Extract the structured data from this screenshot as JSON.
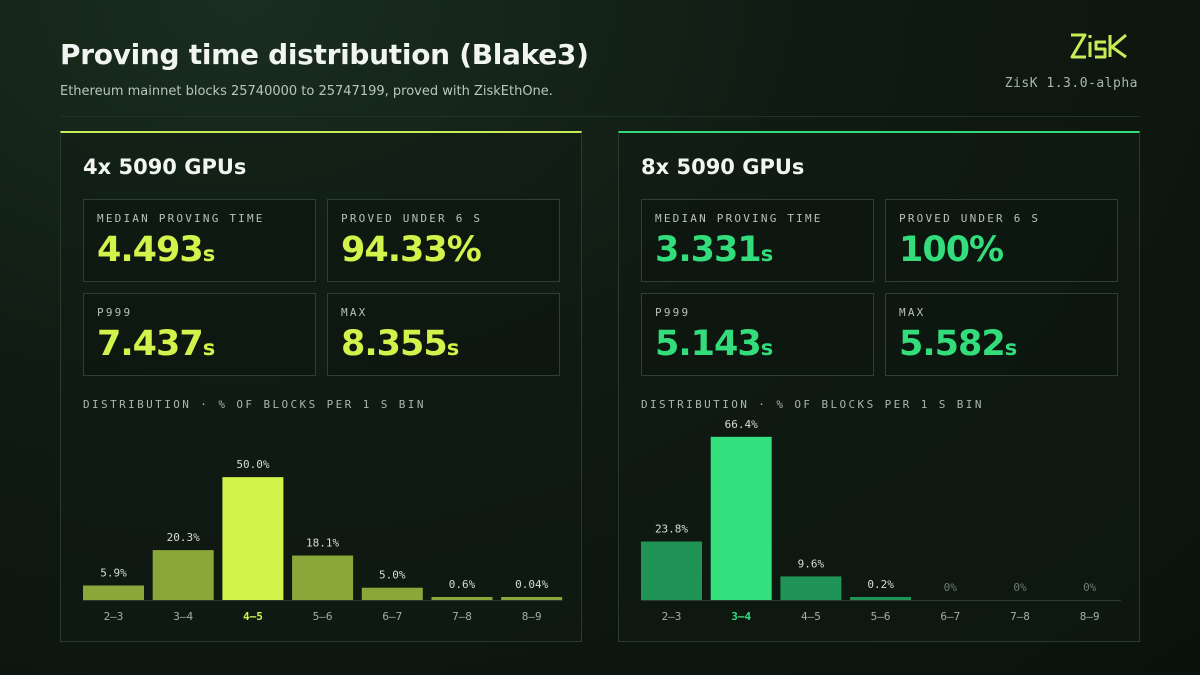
{
  "title": "Proving time distribution (Blake3)",
  "subtitle": "Ethereum mainnet blocks 25740000 to 25747199, proved with ZiskEthOne.",
  "brand": {
    "logo_text": "ZisK",
    "version": "ZisK 1.3.0-alpha",
    "accent_color": "#c8ec58"
  },
  "panels": [
    {
      "name": "4x 5090 GPUs",
      "accent": "#d2f24c",
      "stats": {
        "median": {
          "label": "MEDIAN PROVING TIME",
          "value": "4.493",
          "unit": "s"
        },
        "under6": {
          "label": "PROVED UNDER 6 S",
          "value": "94.33%",
          "unit": ""
        },
        "p999": {
          "label": "P999",
          "value": "7.437",
          "unit": "s"
        },
        "max": {
          "label": "MAX",
          "value": "8.355",
          "unit": "s"
        }
      },
      "dist_label": "DISTRIBUTION · % OF BLOCKS PER 1 S BIN"
    },
    {
      "name": "8x 5090 GPUs",
      "accent": "#34dd7c",
      "stats": {
        "median": {
          "label": "MEDIAN PROVING TIME",
          "value": "3.331",
          "unit": "s"
        },
        "under6": {
          "label": "PROVED UNDER 6 S",
          "value": "100%",
          "unit": ""
        },
        "p999": {
          "label": "P999",
          "value": "5.143",
          "unit": "s"
        },
        "max": {
          "label": "MAX",
          "value": "5.582",
          "unit": "s"
        }
      },
      "dist_label": "DISTRIBUTION · % OF BLOCKS PER 1 S BIN"
    }
  ],
  "chart_data": [
    {
      "type": "bar",
      "categories": [
        "2–3",
        "3–4",
        "4–5",
        "5–6",
        "6–7",
        "7–8",
        "8–9"
      ],
      "values": [
        5.9,
        20.3,
        50.0,
        18.1,
        5.0,
        0.6,
        0.04
      ],
      "labels": [
        "5.9%",
        "20.3%",
        "50.0%",
        "18.1%",
        "5.0%",
        "0.6%",
        "0.04%"
      ],
      "highlight_index": 2,
      "ylim": [
        0,
        70
      ],
      "bar_color": "#8aa83a",
      "highlight_color": "#d2f24c",
      "grid": false
    },
    {
      "type": "bar",
      "categories": [
        "2–3",
        "3–4",
        "4–5",
        "5–6",
        "6–7",
        "7–8",
        "8–9"
      ],
      "values": [
        23.8,
        66.4,
        9.6,
        0.2,
        0,
        0,
        0
      ],
      "labels": [
        "23.8%",
        "66.4%",
        "9.6%",
        "0.2%",
        "0%",
        "0%",
        "0%"
      ],
      "highlight_index": 1,
      "ylim": [
        0,
        70
      ],
      "bar_color": "#1f9456",
      "highlight_color": "#34e07e",
      "grid": false
    }
  ]
}
